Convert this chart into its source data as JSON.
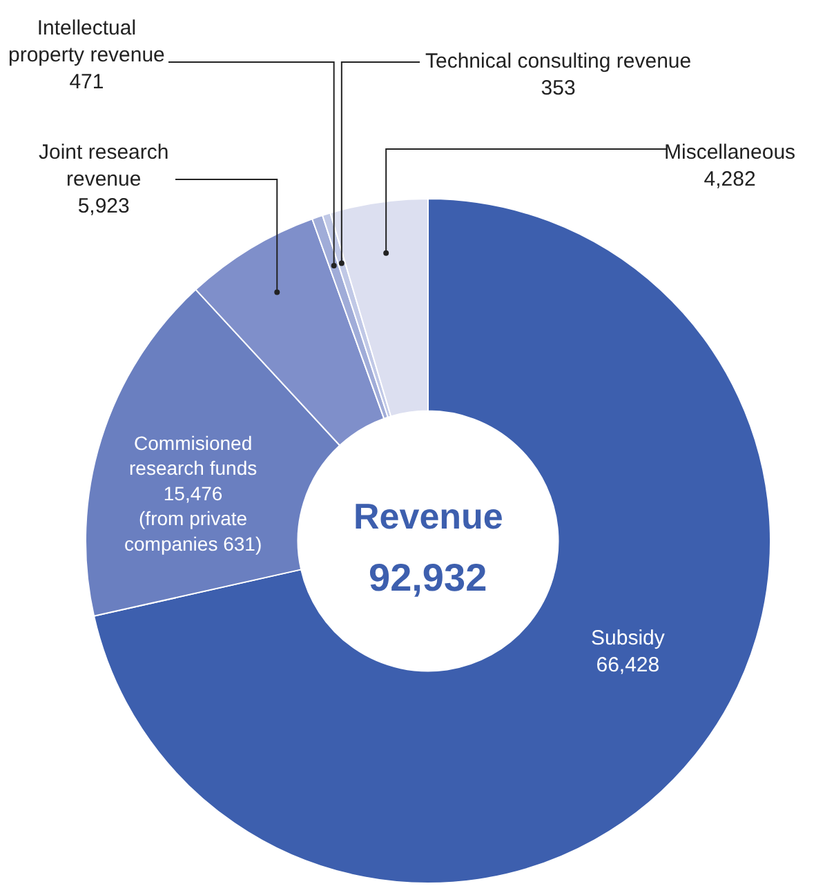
{
  "chart_data": {
    "type": "donut",
    "categories": [
      "Subsidy",
      "Commisioned\nresearch funds",
      "Joint research\nrevenue",
      "Intellectual\nproperty revenue",
      "Technical consulting revenue",
      "Miscellaneous"
    ],
    "values": [
      66428,
      15476,
      5923,
      471,
      353,
      4282
    ],
    "value_labels": [
      "66,428",
      "15,476\n(from private\ncompanies 631)",
      "5,923",
      "471",
      "353",
      "4,282"
    ],
    "colors": [
      "#3d5fae",
      "#6a7fc0",
      "#7f8fca",
      "#a0acd8",
      "#c0c8e6",
      "#dcdff0"
    ],
    "annotations": [
      "Revenue",
      "92,932"
    ],
    "legend": false
  }
}
